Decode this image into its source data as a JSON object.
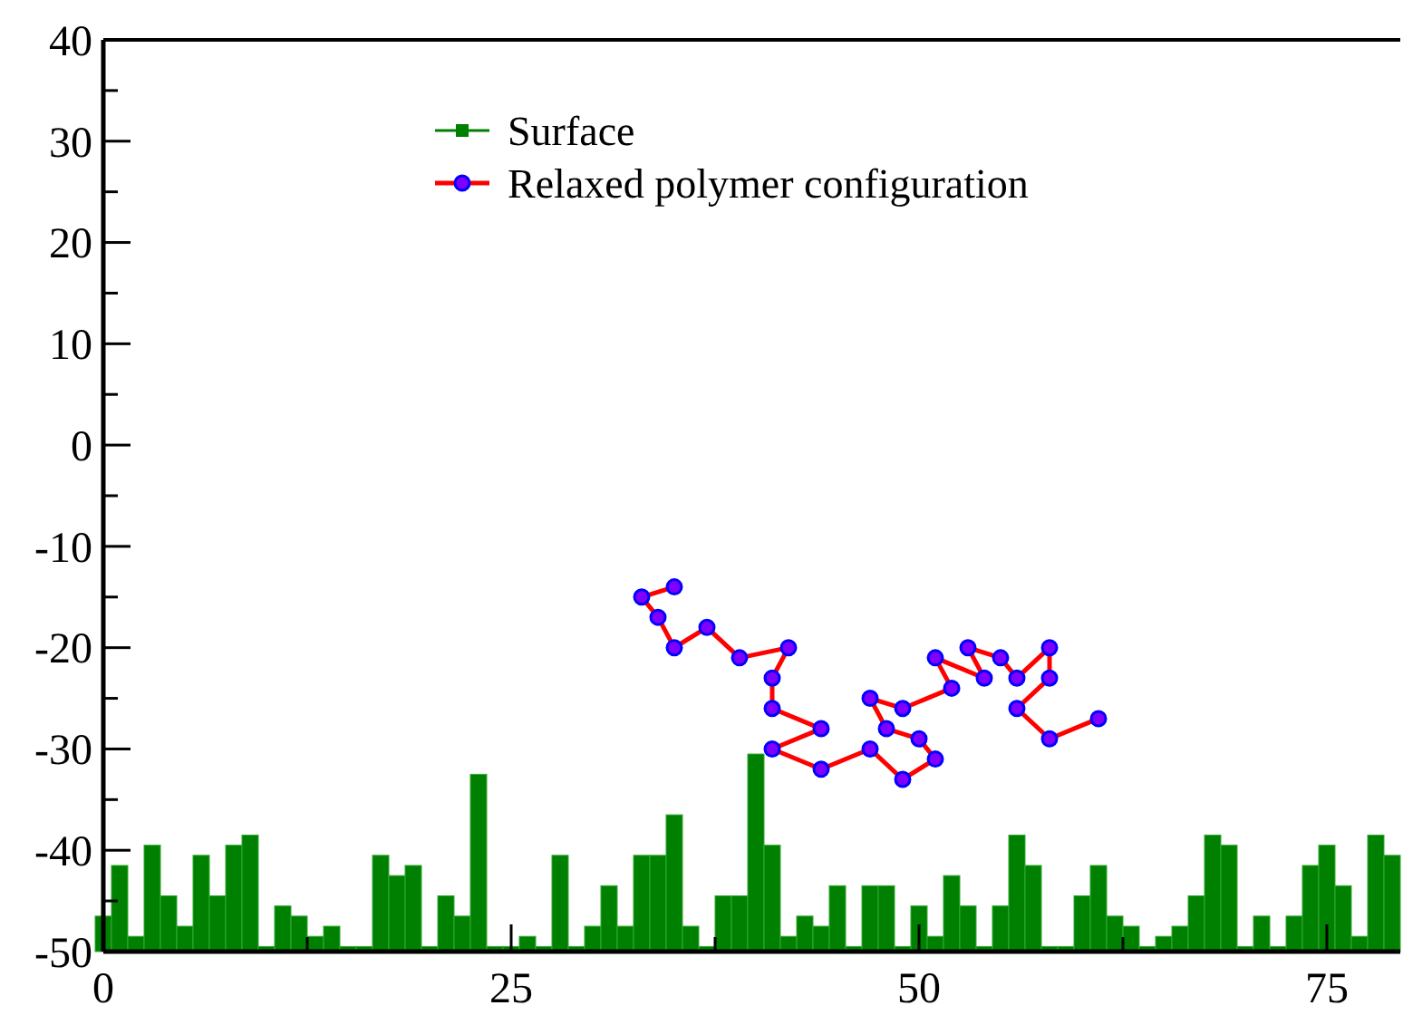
{
  "chart_data": {
    "type": "bar",
    "xlim": [
      0,
      79.5
    ],
    "ylim": [
      -50,
      40
    ],
    "x": [
      0,
      1,
      2,
      3,
      4,
      5,
      6,
      7,
      8,
      9,
      10,
      11,
      12,
      13,
      14,
      15,
      16,
      17,
      18,
      19,
      20,
      21,
      22,
      23,
      24,
      25,
      26,
      27,
      28,
      29,
      30,
      31,
      32,
      33,
      34,
      35,
      36,
      37,
      38,
      39,
      40,
      41,
      42,
      43,
      44,
      45,
      46,
      47,
      48,
      49,
      50,
      51,
      52,
      53,
      54,
      55,
      56,
      57,
      58,
      59,
      60,
      61,
      62,
      63,
      64,
      65,
      66,
      67,
      68,
      69,
      70,
      71,
      72,
      73,
      74,
      75,
      76,
      77,
      78,
      79
    ],
    "xticks": [
      0,
      {
        "value": 12.5,
        "label": null
      },
      25,
      {
        "value": 37.5,
        "label": null
      },
      50,
      {
        "value": 62.5,
        "label": null
      },
      75
    ],
    "yticks": [
      -50,
      {
        "value": -45,
        "label": null
      },
      -40,
      {
        "value": -35,
        "label": null
      },
      -30,
      {
        "value": -25,
        "label": null
      },
      -20,
      {
        "value": -15,
        "label": null
      },
      -10,
      {
        "value": -5,
        "label": null
      },
      0,
      {
        "value": 5,
        "label": null
      },
      10,
      {
        "value": 15,
        "label": null
      },
      20,
      {
        "value": 25,
        "label": null
      },
      30,
      {
        "value": 35,
        "label": null
      },
      40
    ],
    "legend": "top",
    "grid": false,
    "series": [
      {
        "name": "Surface",
        "color": "#008000",
        "marker": "square",
        "base": [
          -50,
          -50,
          -50,
          -50,
          -50,
          -50,
          -50,
          -50,
          -50,
          -50,
          -50,
          -50,
          -50,
          -50,
          -50,
          -50,
          -50,
          -50,
          -50,
          -50,
          -50,
          -50,
          -50,
          -50,
          -50,
          -50,
          -50,
          -50,
          -50,
          -50,
          -50,
          -50,
          -50,
          -50,
          -50,
          -50,
          -50,
          -50,
          -50,
          -50,
          -50,
          -50,
          -50,
          -50,
          -50,
          -50,
          -50,
          -50,
          -50,
          -50,
          -50,
          -50,
          -50,
          -50,
          -50,
          -50,
          -50,
          -50,
          -50,
          -50,
          -50,
          -50,
          -50,
          -50,
          -50,
          -50,
          -50,
          -50,
          -50,
          -50,
          -50,
          -50,
          -50,
          -50,
          -50,
          -50,
          -50,
          -50,
          -50,
          -50
        ],
        "values": [
          3.5,
          8.5,
          1.5,
          10.5,
          5.5,
          2.5,
          9.5,
          5.5,
          10.5,
          11.5,
          0.5,
          4.5,
          3.5,
          1.5,
          2.5,
          0.5,
          0.5,
          9.5,
          7.5,
          8.5,
          0.5,
          5.5,
          3.5,
          17.5,
          0.5,
          0.5,
          1.5,
          0.5,
          9.5,
          0.5,
          2.5,
          6.5,
          2.5,
          9.5,
          9.5,
          13.5,
          2.5,
          0.5,
          5.5,
          5.5,
          19.5,
          10.5,
          1.5,
          3.5,
          2.5,
          6.5,
          0.5,
          6.5,
          6.5,
          0.5,
          4.5,
          1.5,
          7.5,
          4.5,
          0.5,
          4.5,
          11.5,
          8.5,
          0.5,
          0.5,
          5.5,
          8.5,
          3.5,
          2.5,
          0.5,
          1.5,
          2.5,
          5.5,
          11.5,
          10.5,
          0.5,
          3.5,
          0.5,
          3.5,
          8.5,
          10.5,
          6.5,
          1.5,
          11.5,
          9.5
        ]
      },
      {
        "name": "Relaxed polymer configuration",
        "type": "line",
        "color": "#ff0000",
        "marker": "circle",
        "line_style": "solid",
        "x": [
          35,
          33,
          34,
          35,
          37,
          39,
          42,
          41,
          41,
          44,
          41,
          44,
          47,
          49,
          51,
          50,
          48,
          47,
          49,
          52,
          51,
          54,
          53,
          55,
          56,
          58,
          58,
          56,
          58,
          61
        ],
        "values": [
          -14,
          -15,
          -17,
          -20,
          -18,
          -21,
          -20,
          -23,
          -26,
          -28,
          -30,
          -32,
          -30,
          -33,
          -31,
          -29,
          -28,
          -25,
          -26,
          -24,
          -21,
          -23,
          -20,
          -21,
          -23,
          -20,
          -23,
          -26,
          -29,
          -27
        ]
      }
    ]
  }
}
